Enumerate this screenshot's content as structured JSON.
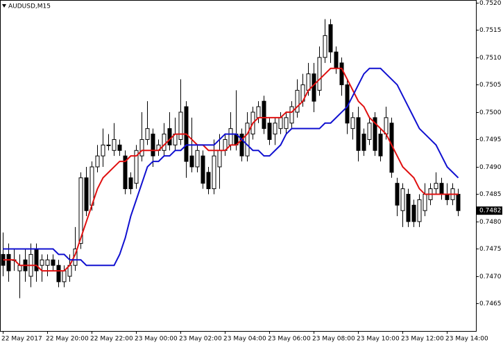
{
  "chart_data": {
    "type": "candlestick",
    "title": "AUDUSD,M15",
    "categories": [
      "22 May 2017",
      null,
      null,
      null,
      null,
      null,
      null,
      null,
      "22 May 20:00",
      null,
      null,
      null,
      null,
      null,
      null,
      null,
      "22 May 22:00",
      null,
      null,
      null,
      null,
      null,
      null,
      null,
      "23 May 00:00",
      null,
      null,
      null,
      null,
      null,
      null,
      null,
      "23 May 02:00",
      null,
      null,
      null,
      null,
      null,
      null,
      null,
      "23 May 04:00",
      null,
      null,
      null,
      null,
      null,
      null,
      null,
      "23 May 06:00",
      null,
      null,
      null,
      null,
      null,
      null,
      null,
      "23 May 08:00",
      null,
      null,
      null,
      null,
      null,
      null,
      null,
      "23 May 10:00",
      null,
      null,
      null,
      null,
      null,
      null,
      null,
      "23 May 12:00",
      null,
      null,
      null,
      null,
      null,
      null,
      null,
      "23 May 14:00",
      null,
      null
    ],
    "open": [
      0.7474,
      0.7474,
      0.7473,
      0.7471,
      0.7473,
      0.747,
      0.7475,
      0.7472,
      0.7472,
      0.7473,
      0.7472,
      0.7469,
      0.747,
      0.7472,
      0.7476,
      0.7488,
      0.7483,
      0.749,
      0.7492,
      0.7494,
      0.7493,
      0.7494,
      0.7492,
      0.7488,
      0.7487,
      0.7492,
      0.7495,
      0.7496,
      0.7493,
      0.7493,
      0.7497,
      0.7494,
      0.7495,
      0.7501,
      0.7492,
      0.749,
      0.7492,
      0.7489,
      0.7486,
      0.749,
      0.7493,
      0.7494,
      0.7496,
      0.7496,
      0.7492,
      0.7496,
      0.7499,
      0.7502,
      0.7498,
      0.7496,
      0.7497,
      0.7497,
      0.7498,
      0.75,
      0.7502,
      0.7504,
      0.7507,
      0.7504,
      0.751,
      0.7516,
      0.7511,
      0.7509,
      0.7505,
      0.7497,
      0.7499,
      0.7496,
      0.7495,
      0.7499,
      0.7496,
      0.7496,
      0.7498,
      0.7487,
      0.7482,
      0.7485,
      0.7483,
      0.748,
      0.7482,
      0.7484,
      0.7486,
      0.7487,
      0.7485,
      0.7484,
      0.7485
    ],
    "high": [
      0.7478,
      0.7476,
      0.7475,
      0.7474,
      0.7475,
      0.7476,
      0.7476,
      0.7474,
      0.7474,
      0.7474,
      0.7473,
      0.7472,
      0.7474,
      0.7479,
      0.7489,
      0.749,
      0.7491,
      0.7494,
      0.7497,
      0.7496,
      0.7498,
      0.7495,
      0.7493,
      0.7489,
      0.7494,
      0.75,
      0.7502,
      0.7497,
      0.7495,
      0.7498,
      0.75,
      0.7499,
      0.7506,
      0.7502,
      0.7499,
      0.7494,
      0.7493,
      0.749,
      0.7495,
      0.7496,
      0.7496,
      0.75,
      0.7504,
      0.7497,
      0.75,
      0.7501,
      0.7502,
      0.7503,
      0.7499,
      0.7499,
      0.75,
      0.75,
      0.7502,
      0.7506,
      0.7507,
      0.7509,
      0.7509,
      0.7512,
      0.7517,
      0.7517,
      0.7512,
      0.751,
      0.7506,
      0.75,
      0.7501,
      0.7497,
      0.7499,
      0.75,
      0.7497,
      0.7501,
      0.7499,
      0.7488,
      0.7487,
      0.7486,
      0.7484,
      0.7485,
      0.7487,
      0.7487,
      0.7489,
      0.7488,
      0.7487,
      0.7487,
      0.7486
    ],
    "low": [
      0.747,
      0.7469,
      0.7471,
      0.7466,
      0.7469,
      0.7468,
      0.7469,
      0.7469,
      0.747,
      0.7471,
      0.7468,
      0.7468,
      0.7469,
      0.7471,
      0.7475,
      0.7481,
      0.7482,
      0.7489,
      0.749,
      0.7493,
      0.7492,
      0.7492,
      0.7485,
      0.7485,
      0.7486,
      0.7491,
      0.7494,
      0.749,
      0.7492,
      0.7492,
      0.7493,
      0.7493,
      0.7494,
      0.7488,
      0.7489,
      0.7489,
      0.7486,
      0.7485,
      0.7485,
      0.7486,
      0.7492,
      0.7493,
      0.7493,
      0.7491,
      0.7491,
      0.7495,
      0.7498,
      0.7496,
      0.7494,
      0.7494,
      0.7496,
      0.7496,
      0.7497,
      0.7499,
      0.7501,
      0.7503,
      0.75,
      0.7503,
      0.7509,
      0.7509,
      0.7507,
      0.7503,
      0.7496,
      0.7495,
      0.7491,
      0.7492,
      0.7494,
      0.7492,
      0.7491,
      0.7495,
      0.7488,
      0.7481,
      0.7479,
      0.7479,
      0.7479,
      0.7479,
      0.7481,
      0.7483,
      0.7485,
      0.7484,
      0.7483,
      0.7483,
      0.7481
    ],
    "close": [
      0.7472,
      0.7471,
      0.7473,
      0.7472,
      0.7471,
      0.7474,
      0.7471,
      0.7473,
      0.7473,
      0.7472,
      0.7469,
      0.7471,
      0.7472,
      0.7475,
      0.7488,
      0.7482,
      0.749,
      0.7492,
      0.7494,
      0.7494,
      0.7495,
      0.7493,
      0.7486,
      0.7486,
      0.7493,
      0.7495,
      0.7497,
      0.7492,
      0.7494,
      0.7496,
      0.7494,
      0.7496,
      0.75,
      0.7491,
      0.749,
      0.7493,
      0.7487,
      0.7486,
      0.7492,
      0.7493,
      0.7495,
      0.7497,
      0.7494,
      0.7492,
      0.7498,
      0.75,
      0.7501,
      0.7497,
      0.7495,
      0.7498,
      0.7499,
      0.7499,
      0.7501,
      0.7504,
      0.7505,
      0.7507,
      0.7502,
      0.751,
      0.7514,
      0.7511,
      0.7508,
      0.7505,
      0.7498,
      0.7499,
      0.7493,
      0.7493,
      0.7498,
      0.7493,
      0.7492,
      0.7499,
      0.7489,
      0.7483,
      0.7486,
      0.748,
      0.748,
      0.7484,
      0.7485,
      0.7486,
      0.7487,
      0.7485,
      0.7484,
      0.7486,
      0.7482
    ],
    "series": [
      {
        "color": "#e01010",
        "values": [
          0.7473,
          0.7473,
          0.7473,
          0.7472,
          0.7472,
          0.7472,
          0.7472,
          0.7471,
          0.7471,
          0.7471,
          0.7471,
          0.7471,
          0.7472,
          0.7474,
          0.7477,
          0.748,
          0.7483,
          0.7486,
          0.7488,
          0.7489,
          0.749,
          0.7491,
          0.7491,
          0.7492,
          0.7492,
          0.7493,
          0.7493,
          0.7493,
          0.7493,
          0.7494,
          0.7495,
          0.7496,
          0.7496,
          0.7496,
          0.7495,
          0.7494,
          0.7494,
          0.7493,
          0.7493,
          0.7493,
          0.7493,
          0.7494,
          0.7494,
          0.7495,
          0.7496,
          0.7498,
          0.7499,
          0.7499,
          0.7499,
          0.7499,
          0.7499,
          0.75,
          0.75,
          0.7501,
          0.7502,
          0.7504,
          0.7505,
          0.7506,
          0.7507,
          0.7508,
          0.7508,
          0.7508,
          0.7506,
          0.7504,
          0.7502,
          0.7501,
          0.7499,
          0.7498,
          0.7497,
          0.7496,
          0.7494,
          0.7492,
          0.749,
          0.7489,
          0.7488,
          0.7486,
          0.7485,
          0.7485,
          0.7485,
          0.7485,
          0.7485,
          0.7485,
          0.7485
        ]
      },
      {
        "color": "#1010d0",
        "values": [
          0.7475,
          0.7475,
          0.7475,
          0.7475,
          0.7475,
          0.7475,
          0.7475,
          0.7475,
          0.7475,
          0.7475,
          0.7474,
          0.7474,
          0.7473,
          0.7473,
          0.7473,
          0.7472,
          0.7472,
          0.7472,
          0.7472,
          0.7472,
          0.7472,
          0.7474,
          0.7477,
          0.7481,
          0.7484,
          0.7487,
          0.749,
          0.7491,
          0.7491,
          0.7492,
          0.7492,
          0.7493,
          0.7493,
          0.7494,
          0.7494,
          0.7494,
          0.7494,
          0.7494,
          0.7494,
          0.7495,
          0.7496,
          0.7496,
          0.7496,
          0.7495,
          0.7494,
          0.7493,
          0.7493,
          0.7492,
          0.7492,
          0.7493,
          0.7494,
          0.7496,
          0.7497,
          0.7497,
          0.7497,
          0.7497,
          0.7497,
          0.7497,
          0.7498,
          0.7498,
          0.7499,
          0.75,
          0.7501,
          0.7503,
          0.7505,
          0.7507,
          0.7508,
          0.7508,
          0.7508,
          0.7507,
          0.7506,
          0.7505,
          0.7503,
          0.7501,
          0.7499,
          0.7497,
          0.7496,
          0.7495,
          0.7494,
          0.7492,
          0.749,
          0.7489,
          0.7488
        ]
      }
    ],
    "ylim": [
      0.746,
      0.75205
    ],
    "yticks": [
      {
        "value": 0.7465,
        "label": "0.7465"
      },
      {
        "value": 0.747,
        "label": "0.7470"
      },
      {
        "value": 0.7475,
        "label": "0.7475"
      },
      {
        "value": 0.748,
        "label": "0.7480"
      },
      {
        "value": 0.7485,
        "label": "0.7485"
      },
      {
        "value": 0.749,
        "label": "0.7490"
      },
      {
        "value": 0.7495,
        "label": "0.7495"
      },
      {
        "value": 0.75,
        "label": "0.7500"
      },
      {
        "value": 0.7505,
        "label": "0.7505"
      },
      {
        "value": 0.751,
        "label": "0.7510"
      },
      {
        "value": 0.7515,
        "label": "0.7515"
      },
      {
        "value": 0.752,
        "label": "0.7520"
      }
    ],
    "last_price": {
      "value": 0.7482,
      "label": "0.7482"
    },
    "grid": false
  }
}
